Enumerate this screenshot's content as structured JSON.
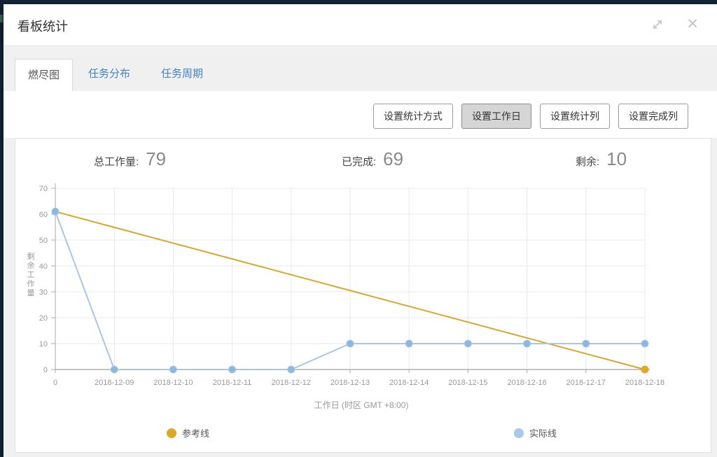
{
  "modal": {
    "title": "看板统计"
  },
  "tabs": [
    {
      "label": "燃尽图",
      "active": true
    },
    {
      "label": "任务分布",
      "active": false
    },
    {
      "label": "任务周期",
      "active": false
    }
  ],
  "toolbar": {
    "buttons": [
      {
        "label": "设置统计方式",
        "active": false
      },
      {
        "label": "设置工作日",
        "active": true
      },
      {
        "label": "设置统计列",
        "active": false
      },
      {
        "label": "设置完成列",
        "active": false
      }
    ]
  },
  "stats": [
    {
      "label": "总工作量:",
      "value": "79"
    },
    {
      "label": "已完成:",
      "value": "69"
    },
    {
      "label": "剩余:",
      "value": "10"
    }
  ],
  "chart_data": {
    "type": "line",
    "categories": [
      "0",
      "2018-12-09",
      "2018-12-10",
      "2018-12-11",
      "2018-12-12",
      "2018-12-13",
      "2018-12-14",
      "2018-12-15",
      "2018-12-16",
      "2018-12-17",
      "2018-12-18"
    ],
    "series": [
      {
        "name": "参考线",
        "color": "#d9a62e",
        "marker_color": "#e2a91f",
        "legend_color": "#dea822",
        "markers": "last",
        "values": [
          61,
          54.9,
          48.8,
          42.7,
          36.6,
          30.5,
          24.4,
          18.3,
          12.2,
          6.1,
          0
        ]
      },
      {
        "name": "实际线",
        "color": "#a9c6e6",
        "marker_color": "#8cb8e0",
        "legend_color": "#a7c9ec",
        "markers": "all",
        "values": [
          61,
          0,
          0,
          0,
          0,
          10,
          10,
          10,
          10,
          10,
          10
        ]
      }
    ],
    "title": "",
    "xlabel": "工作日 (时区 GMT +8:00)",
    "ylabel": "剩余工作量",
    "ylim": [
      0,
      70
    ],
    "ytick_step": 10,
    "grid": true,
    "legend_position": "bottom"
  }
}
